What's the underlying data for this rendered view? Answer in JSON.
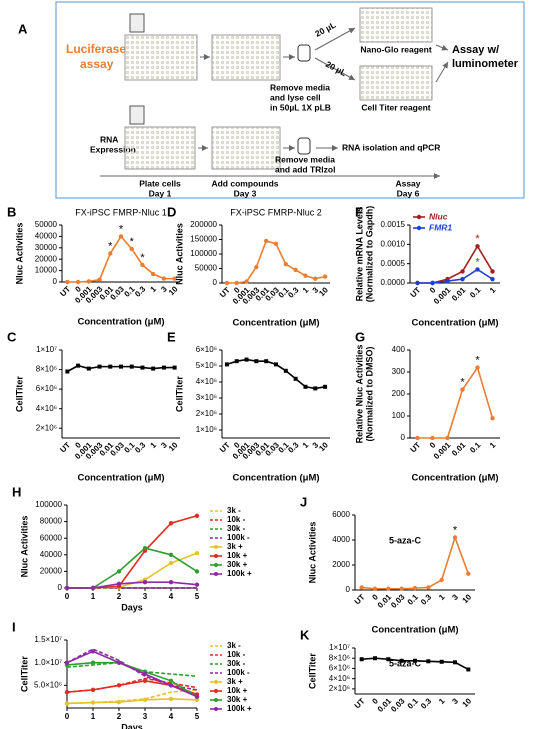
{
  "figure_a": {
    "panel": "A",
    "luciferase_assay": [
      "Luciferase",
      "assay"
    ],
    "volume_top": "20 µL",
    "volume_bottom": "20 µL",
    "lyse_step": [
      "Remove media",
      "and lyse cell",
      "in 50µL 1X pLB"
    ],
    "nano_glo": "Nano-Glo reagent",
    "cell_titer": "Cell Titer reagent",
    "assay_readout": [
      "Assay w/",
      "luminometer"
    ],
    "rna_expression": [
      "RNA",
      "Expression"
    ],
    "trizol_step": [
      "Remove media",
      "and add TRIzol"
    ],
    "rna_readout": "RNA isolation and qPCR",
    "timeline": [
      [
        "Plate cells",
        "Day 1"
      ],
      [
        "Add compounds",
        "Day 3"
      ],
      [
        "Assay",
        "Day 6"
      ]
    ]
  },
  "chart_data": [
    {
      "panel": "B",
      "type": "line",
      "title": "FX-iPSC FMRP-Nluc 1",
      "y_label": [
        "Nluc Activities"
      ],
      "x_label": "Concentration (μM)",
      "categories": [
        "UT",
        "0",
        "0.001",
        "0.003",
        "0.01",
        "0.03",
        "0.1",
        "0.3",
        "1",
        "3",
        "10"
      ],
      "series": [
        {
          "color": "#ed7d31",
          "marker": "circle",
          "values": [
            0,
            0,
            500,
            2000,
            25000,
            40000,
            29000,
            15000,
            7000,
            3000,
            3000
          ],
          "significance": [
            null,
            null,
            null,
            null,
            "*",
            "*",
            "*",
            "*",
            null,
            null,
            null
          ],
          "significance_color": "#000000"
        }
      ],
      "ylim": [
        0,
        50000
      ],
      "yticks": [
        0,
        10000,
        20000,
        30000,
        40000,
        50000
      ]
    },
    {
      "panel": "C",
      "type": "line",
      "y_label": [
        "CellTiter"
      ],
      "x_label": "Concentration (μM)",
      "categories": [
        "UT",
        "0",
        "0.001",
        "0.003",
        "0.01",
        "0.03",
        "0.1",
        "0.3",
        "1",
        "3",
        "10"
      ],
      "series": [
        {
          "color": "#000000",
          "marker": "square",
          "values": [
            7800000,
            8400000,
            8100000,
            8300000,
            8300000,
            8300000,
            8300000,
            8200000,
            8100000,
            8200000,
            8200000
          ]
        }
      ],
      "ylim": [
        1000000,
        10000000
      ],
      "yticks": [
        {
          "value": 2000000,
          "label": "2×10⁶"
        },
        {
          "value": 4000000,
          "label": "4×10⁶"
        },
        {
          "value": 6000000,
          "label": "6×10⁶"
        },
        {
          "value": 8000000,
          "label": "8×10⁶"
        },
        {
          "value": 10000000,
          "label": "1×10⁷"
        }
      ]
    },
    {
      "panel": "D",
      "type": "line",
      "title": "FX-iPSC FMRP-Nluc 2",
      "y_label": [
        "Nluc Activities"
      ],
      "x_label": "Concentration (μM)",
      "categories": [
        "UT",
        "0",
        "0.001",
        "0.003",
        "0.01",
        "0.03",
        "0.1",
        "0.3",
        "1",
        "3",
        "10"
      ],
      "series": [
        {
          "color": "#ed7d31",
          "marker": "circle",
          "values": [
            0,
            0,
            5000,
            55000,
            145000,
            135000,
            65000,
            45000,
            25000,
            15000,
            22000
          ]
        }
      ],
      "ylim": [
        0,
        200000
      ],
      "yticks": [
        0,
        50000,
        100000,
        150000,
        200000
      ]
    },
    {
      "panel": "E",
      "type": "line",
      "y_label": [
        "CellTiter"
      ],
      "x_label": "Concentration (μM)",
      "categories": [
        "UT",
        "0",
        "0.001",
        "0.003",
        "0.01",
        "0.03",
        "0.1",
        "0.3",
        "1",
        "3",
        "10"
      ],
      "series": [
        {
          "color": "#000000",
          "marker": "square",
          "values": [
            5100000,
            5300000,
            5400000,
            5300000,
            5300000,
            5100000,
            4700000,
            4200000,
            3700000,
            3600000,
            3700000
          ]
        }
      ],
      "ylim": [
        500000,
        6000000
      ],
      "yticks": [
        {
          "value": 1000000,
          "label": "1×10⁶"
        },
        {
          "value": 2000000,
          "label": "2×10⁶"
        },
        {
          "value": 3000000,
          "label": "3×10⁶"
        },
        {
          "value": 4000000,
          "label": "4×10⁶"
        },
        {
          "value": 5000000,
          "label": "5×10⁶"
        },
        {
          "value": 6000000,
          "label": "6×10⁶"
        }
      ]
    },
    {
      "panel": "F",
      "type": "line",
      "y_label": [
        "Relative mRNA Levels",
        "(Normalized to Gapdh)"
      ],
      "x_label": "Concentration (μM)",
      "categories": [
        "UT",
        "0",
        "0.001",
        "0.01",
        "0.1",
        "1"
      ],
      "series": [
        {
          "name": "Nluc",
          "color": "#a51c1c",
          "marker": "circle",
          "values": [
            0,
            0,
            0.0001,
            0.0003,
            0.00095,
            0.0003
          ],
          "significance": [
            null,
            null,
            null,
            null,
            "*",
            null
          ]
        },
        {
          "name": "FMR1",
          "color": "#1f3fd6",
          "marker": "circle",
          "values": [
            0,
            0,
            5e-05,
            0.0001,
            0.00035,
            0.0001
          ],
          "significance": [
            null,
            null,
            null,
            null,
            "*",
            null
          ]
        }
      ],
      "ylim": [
        0,
        0.0015
      ],
      "yticks": [
        {
          "value": 0,
          "label": "0.0000"
        },
        0.0005,
        {
          "value": 0.001,
          "label": "0.0010"
        },
        0.0015
      ],
      "legend": "upper-left"
    },
    {
      "panel": "G",
      "type": "line",
      "y_label": [
        "Relative Nluc Activities",
        "(Normalized to DMSO)"
      ],
      "x_label": "Concentration (μM)",
      "categories": [
        "UT",
        "0",
        "0.001",
        "0.01",
        "0.1",
        "1"
      ],
      "series": [
        {
          "color": "#ed7d31",
          "marker": "circle",
          "values": [
            0,
            0,
            0,
            220,
            320,
            90
          ],
          "significance": [
            null,
            null,
            null,
            "*",
            "*",
            null
          ],
          "significance_color": "#000000"
        }
      ],
      "ylim": [
        0,
        400
      ],
      "yticks": [
        0,
        100,
        200,
        300,
        400
      ]
    },
    {
      "panel": "H",
      "type": "line",
      "y_label": [
        "Nluc Activities"
      ],
      "x_label": "Days",
      "x": [
        0,
        1,
        2,
        3,
        4,
        5
      ],
      "xlim": [
        0,
        5
      ],
      "xticks": [
        0,
        1,
        2,
        3,
        4,
        5
      ],
      "series": [
        {
          "name": "3k -",
          "color": "#e6c229",
          "dashed": true,
          "values": [
            0,
            0,
            0,
            0,
            0,
            0
          ]
        },
        {
          "name": "10k -",
          "color": "#e02b20",
          "dashed": true,
          "values": [
            0,
            0,
            0,
            0,
            0,
            0
          ]
        },
        {
          "name": "30k -",
          "color": "#2e9e2e",
          "dashed": true,
          "values": [
            0,
            0,
            0,
            0,
            0,
            0
          ]
        },
        {
          "name": "100k -",
          "color": "#8e2aa8",
          "dashed": true,
          "values": [
            0,
            0,
            0,
            0,
            0,
            0
          ]
        },
        {
          "name": "3k +",
          "color": "#e6c229",
          "marker": "circle",
          "values": [
            0,
            0,
            1000,
            10000,
            30000,
            42000
          ]
        },
        {
          "name": "10k +",
          "color": "#e02b20",
          "marker": "circle",
          "values": [
            0,
            0,
            2000,
            45000,
            78000,
            87000
          ]
        },
        {
          "name": "30k +",
          "color": "#2e9e2e",
          "marker": "circle",
          "values": [
            0,
            0,
            20000,
            48000,
            40000,
            20000
          ]
        },
        {
          "name": "100k +",
          "color": "#8e2aa8",
          "marker": "circle",
          "values": [
            0,
            0,
            5000,
            7000,
            7000,
            4000
          ]
        }
      ],
      "ylim": [
        0,
        100000
      ],
      "yticks": [
        0,
        20000,
        40000,
        60000,
        80000,
        100000
      ],
      "legend": "right"
    },
    {
      "panel": "I",
      "type": "line",
      "y_label": [
        "CellTiter"
      ],
      "x_label": "Days",
      "x": [
        0,
        1,
        2,
        3,
        4,
        5
      ],
      "xlim": [
        0,
        5
      ],
      "xticks": [
        0,
        1,
        2,
        3,
        4,
        5
      ],
      "series": [
        {
          "name": "3k -",
          "color": "#e6c229",
          "dashed": true,
          "values": [
            1000000,
            1200000,
            1500000,
            2000000,
            3500000,
            4000000
          ]
        },
        {
          "name": "10k -",
          "color": "#e02b20",
          "dashed": true,
          "values": [
            3500000,
            4000000,
            5000000,
            6500000,
            5500000,
            4500000
          ]
        },
        {
          "name": "30k -",
          "color": "#2e9e2e",
          "dashed": true,
          "values": [
            9000000,
            9500000,
            10000000,
            8000000,
            7500000,
            7000000
          ]
        },
        {
          "name": "100k -",
          "color": "#8e2aa8",
          "dashed": true,
          "values": [
            10000000,
            13000000,
            10500000,
            7000000,
            5000000,
            4000000
          ]
        },
        {
          "name": "3k +",
          "color": "#e6c229",
          "marker": "circle",
          "values": [
            1000000,
            1200000,
            1300000,
            1800000,
            2000000,
            1800000
          ]
        },
        {
          "name": "10k +",
          "color": "#e02b20",
          "marker": "circle",
          "values": [
            3500000,
            4000000,
            5000000,
            6000000,
            5000000,
            3000000
          ]
        },
        {
          "name": "30k +",
          "color": "#2e9e2e",
          "marker": "circle",
          "values": [
            9500000,
            10000000,
            10000000,
            8000000,
            6000000,
            2500000
          ]
        },
        {
          "name": "100k +",
          "color": "#8e2aa8",
          "marker": "circle",
          "values": [
            10000000,
            12500000,
            10000000,
            7500000,
            5000000,
            2500000
          ]
        }
      ],
      "ylim": [
        0,
        15000000
      ],
      "yticks": [
        {
          "value": 5000000,
          "label": "5.0×10⁶"
        },
        {
          "value": 10000000,
          "label": "1.0×10⁷"
        },
        {
          "value": 15000000,
          "label": "1.5×10⁷"
        }
      ],
      "legend": "right"
    },
    {
      "panel": "J",
      "type": "line",
      "annotation": "5-aza-C",
      "y_label": [
        "Nluc Activities"
      ],
      "x_label": "Concentration (μM)",
      "categories": [
        "UT",
        "0",
        "0.01",
        "0.03",
        "0.1",
        "0.3",
        "1",
        "3",
        "10"
      ],
      "series": [
        {
          "color": "#ed7d31",
          "marker": "circle",
          "values": [
            200,
            100,
            100,
            100,
            150,
            200,
            800,
            4200,
            1300
          ],
          "significance": [
            null,
            null,
            null,
            null,
            null,
            null,
            null,
            "*",
            null
          ],
          "significance_color": "#000000"
        }
      ],
      "ylim": [
        0,
        6000
      ],
      "yticks": [
        0,
        2000,
        4000,
        6000
      ]
    },
    {
      "panel": "K",
      "type": "line",
      "annotation": "5-aza-C",
      "y_label": [
        "CellTiter"
      ],
      "x_label": "Concentration (μM)",
      "categories": [
        "UT",
        "0",
        "0.01",
        "0.03",
        "0.1",
        "0.3",
        "1",
        "3",
        "10"
      ],
      "series": [
        {
          "color": "#000000",
          "marker": "square",
          "values": [
            7800000,
            8000000,
            7800000,
            7500000,
            7500000,
            7400000,
            7300000,
            7200000,
            5800000
          ]
        }
      ],
      "ylim": [
        1000000,
        10000000
      ],
      "yticks": [
        {
          "value": 2000000,
          "label": "2×10⁶"
        },
        {
          "value": 4000000,
          "label": "4×10⁶"
        },
        {
          "value": 6000000,
          "label": "6×10⁶"
        },
        {
          "value": 8000000,
          "label": "8×10⁶"
        },
        {
          "value": 10000000,
          "label": "1×10⁷"
        }
      ]
    }
  ]
}
